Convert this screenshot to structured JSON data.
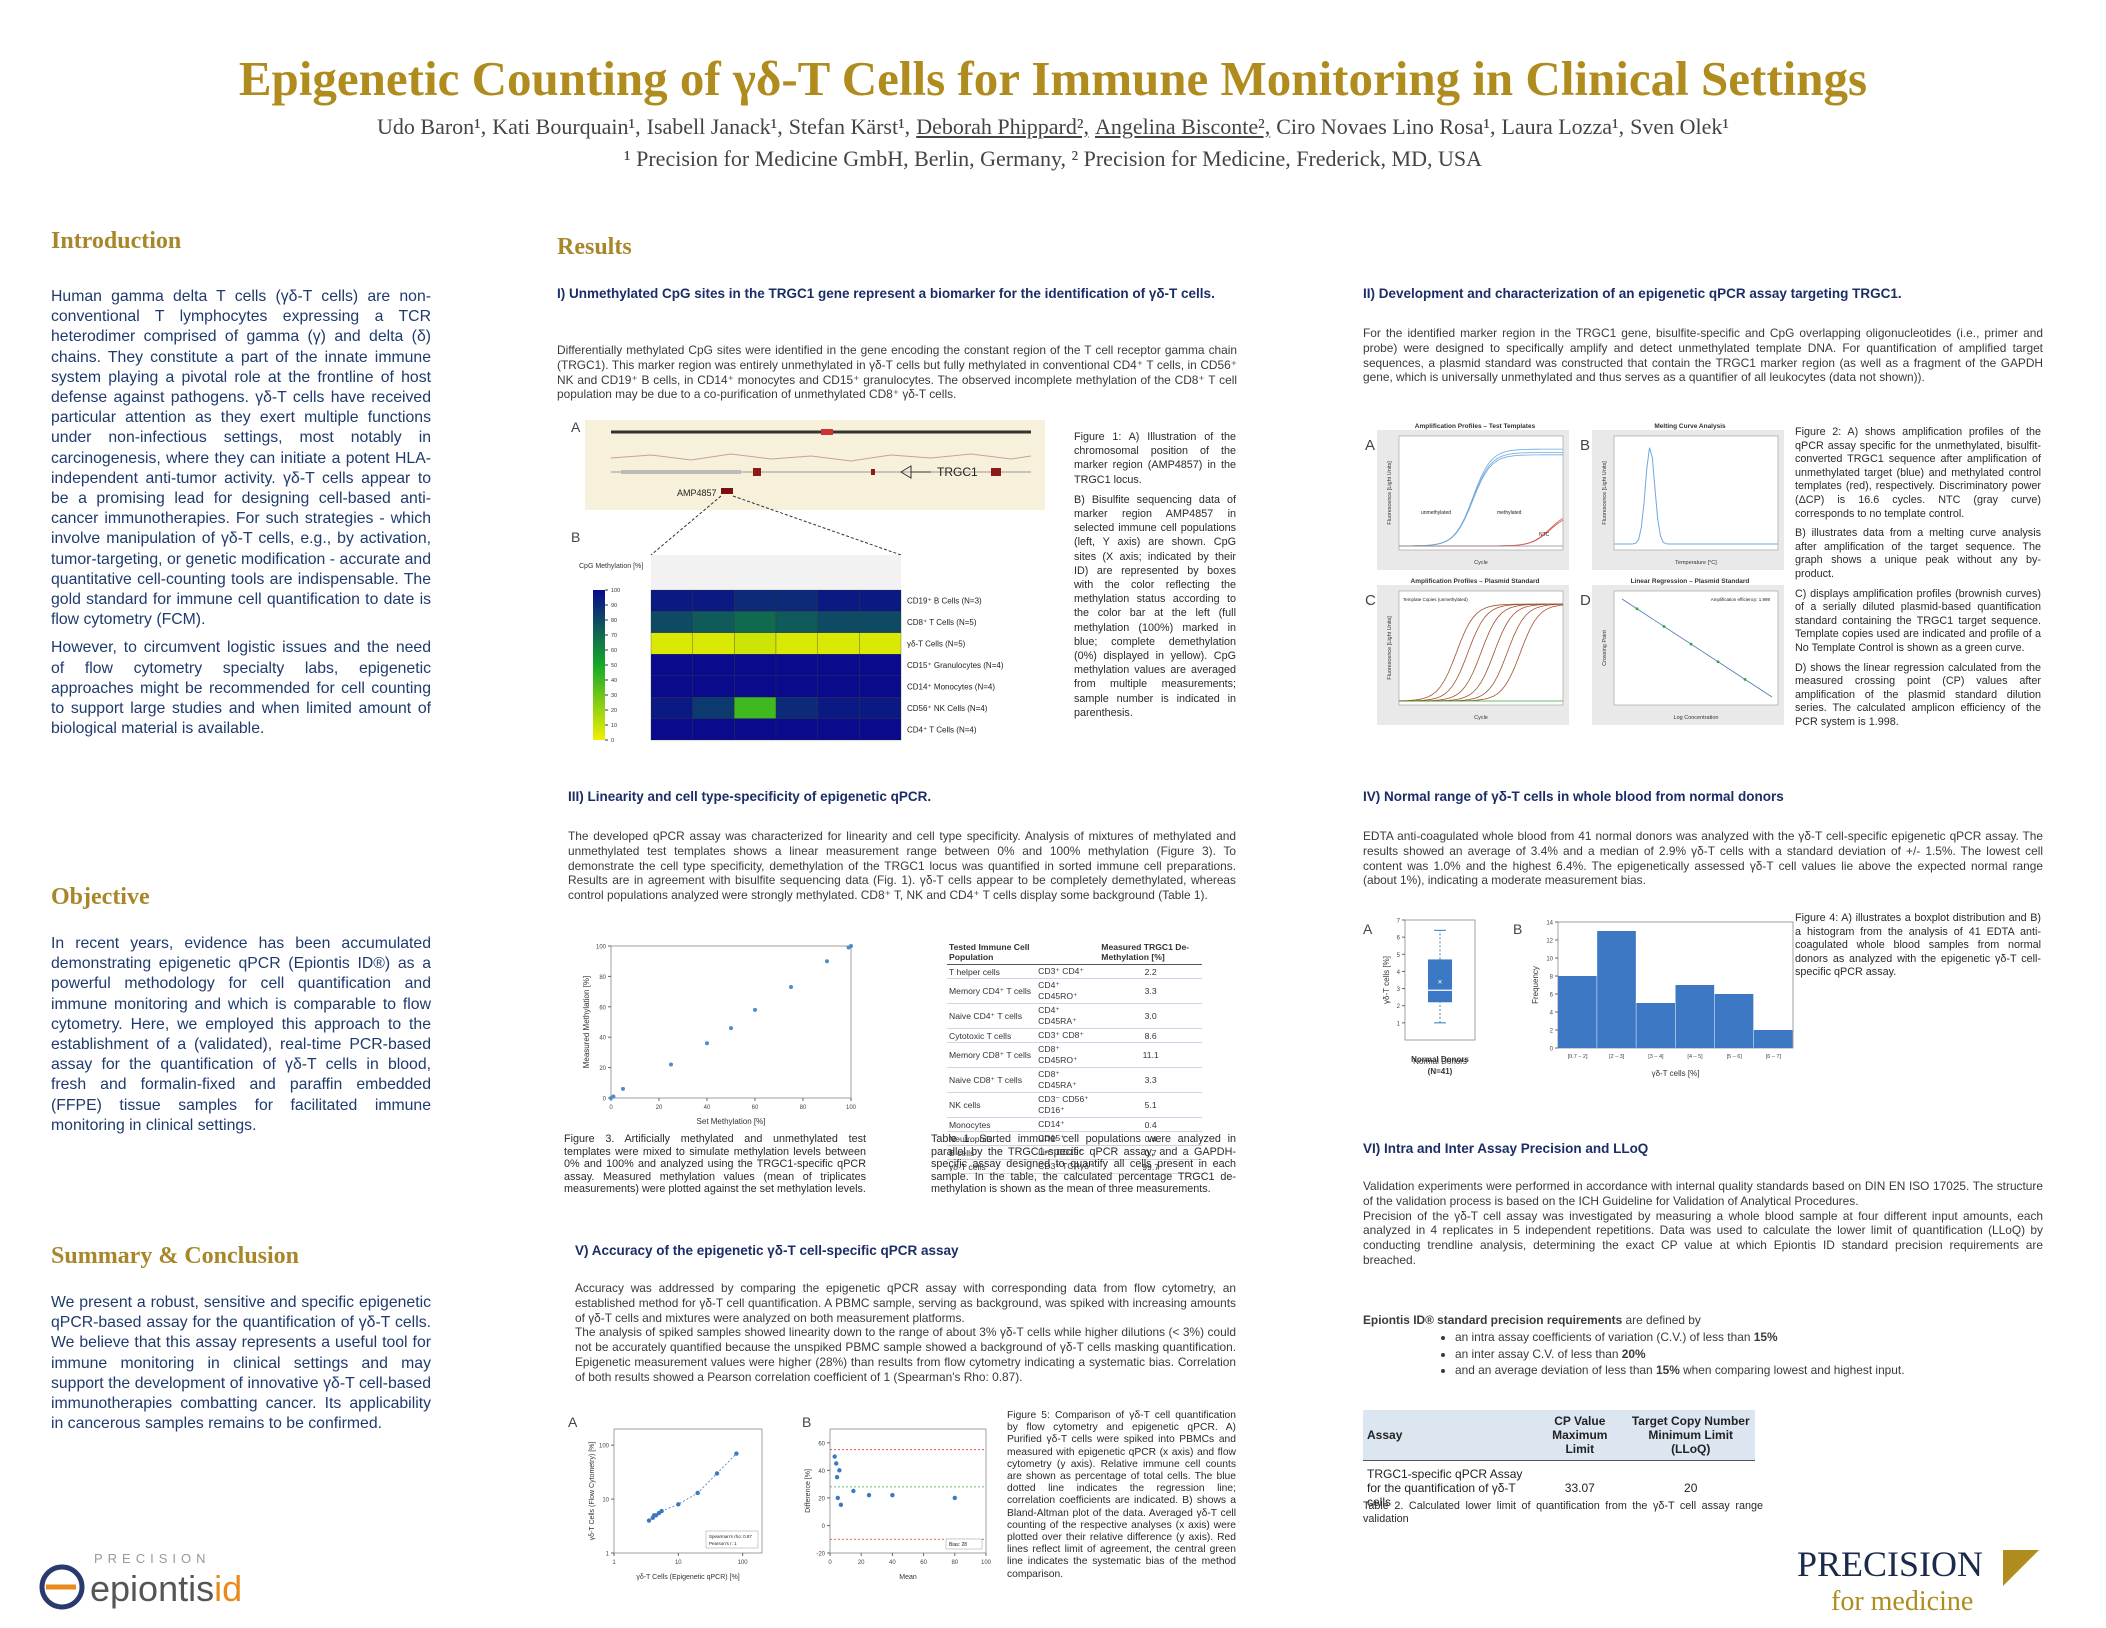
{
  "header": {
    "title": "Epigenetic Counting of γδ-T Cells for Immune Monitoring in Clinical Settings",
    "authors": [
      "Udo Baron¹,",
      "Kati Bourquain¹,",
      "Isabell Janack¹,",
      "Stefan Kärst¹,",
      "Deborah Phippard²,",
      "Angelina Bisconte²,",
      "Ciro Novaes Lino Rosa¹,",
      "Laura Lozza¹,",
      "Sven Olek¹"
    ],
    "affiliations": "¹ Precision for Medicine GmbH, Berlin, Germany, ² Precision for Medicine, Frederick, MD, USA"
  },
  "introduction": {
    "heading": "Introduction",
    "paragraphs": [
      "Human gamma delta T cells (γδ-T cells) are non-conventional T lymphocytes expressing a TCR heterodimer comprised of gamma (γ) and delta (δ) chains. They constitute a part of the innate immune system playing a pivotal role at the frontline of host defense against pathogens. γδ-T cells have received particular attention as they exert multiple functions under non-infectious settings, most notably in carcinogenesis, where they can initiate a potent HLA-independent anti-tumor activity. γδ-T cells appear to be a promising lead for designing cell-based anti-cancer immunotherapies. For such strategies - which involve manipulation of γδ-T cells, e.g., by activation, tumor-targeting, or genetic modification - accurate and quantitative cell-counting tools are indispensable. The gold standard for immune cell quantification to date is flow cytometry (FCM).",
      "However, to circumvent logistic issues and the need of flow cytometry specialty labs, epigenetic approaches might be recommended for cell counting to support large studies and when limited amount of biological material is available."
    ]
  },
  "objective": {
    "heading": "Objective",
    "text": "In recent years, evidence has been accumulated demonstrating epigenetic qPCR (Epiontis ID®) as a powerful methodology for cell quantification and immune monitoring and which is comparable to flow cytometry. Here, we employed this approach to the establishment of a (validated), real-time PCR-based assay for the quantification of γδ-T cells in blood, fresh and formalin-fixed and paraffin embedded (FFPE) tissue samples for facilitated immune monitoring in clinical settings."
  },
  "summary": {
    "heading": "Summary & Conclusion",
    "text": "We present a robust, sensitive and specific epigenetic qPCR-based assay for the quantification of γδ-T cells. We believe that this assay represents a useful tool for immune monitoring in clinical settings and may support the development of innovative γδ-T cell-based immunotherapies combatting cancer. Its applicability in cancerous samples remains to be confirmed."
  },
  "results": {
    "heading": "Results"
  },
  "section1": {
    "title": "I) Unmethylated CpG sites in the TRGC1 gene represent a biomarker for the identification of γδ-T cells.",
    "text": "Differentially methylated CpG sites were identified in the gene encoding the constant region of the T cell receptor gamma chain (TRGC1). This marker region was entirely unmethylated in γδ-T cells but fully methylated in conventional CD4⁺ T cells, in CD56⁺ NK and CD19⁺ B cells, in CD14⁺ monocytes and CD15⁺ granulocytes. The observed incomplete methylation of the CD8⁺ T cell population may be due to a co-purification of unmethylated CD8⁺ γδ-T cells.",
    "caption": [
      "Figure 1: A) Illustration of the chromosomal position of the marker region (AMP4857) in the TRGC1 locus.",
      "B) Bisulfite sequencing data of marker region AMP4857 in selected immune cell populations (left, Y axis) are shown. CpG sites (X axis; indicated by their ID) are represented by boxes with the color reflecting the methylation status according to the color bar at the left (full methylation (100%) marked in blue; complete demethylation (0%) displayed in yellow). CpG methylation values are averaged from multiple measurements; sample number is indicated in parenthesis."
    ]
  },
  "section2": {
    "title": "II) Development and characterization of an epigenetic qPCR assay targeting TRGC1.",
    "text": "For the identified marker region in the TRGC1 gene, bisulfite-specific and CpG overlapping oligonucleotides (i.e., primer and probe) were designed to specifically amplify and detect unmethylated template DNA. For quantification of amplified target sequences, a plasmid standard was constructed that contain the TRGC1 marker region (as well as a fragment of the GAPDH gene, which is universally unmethylated and thus serves as a quantifier of all leukocytes (data not shown)).",
    "caption": [
      "Figure 2: A) shows amplification profiles of the qPCR assay specific for the unmethylated, bisulfit-converted TRGC1 sequence after amplification of unmethylated target (blue) and methylated control templates (red), respectively. Discriminatory power (ΔCP) is 16.6 cycles. NTC (gray curve) corresponds to no template control.",
      "B) illustrates data from a melting curve analysis after amplification of the target sequence. The graph shows a unique peak without any by-product.",
      "C) displays amplification profiles (brownish curves) of a serially diluted plasmid-based quantification standard containing the TRGC1 target sequence. Template copies used are indicated and profile of a No Template Control is shown as a green curve.",
      "D) shows the linear regression calculated from the measured crossing point (CP) values after amplification of the plasmid standard dilution series. The calculated amplicon efficiency of the PCR system is 1.998."
    ]
  },
  "section3": {
    "title": "III) Linearity and cell type-specificity of epigenetic qPCR.",
    "text": "The developed qPCR assay was characterized for linearity and cell type specificity. Analysis of mixtures of methylated and unmethylated test templates shows a linear measurement range between 0% and 100% methylation (Figure 3). To demonstrate the cell type specificity, demethylation of the TRGC1 locus was quantified in sorted immune cell preparations. Results are in agreement with bisulfite sequencing data (Fig. 1). γδ-T cells appear to be completely demethylated, whereas control populations analyzed were strongly methylated. CD8⁺ T, NK and CD4⁺ T cells display some background (Table 1).",
    "figure_caption": "Figure 3. Artificially methylated and unmethylated test templates were mixed to simulate methylation levels between 0% and 100% and analyzed using the TRGC1-specific qPCR assay. Measured methylation values (mean of triplicates measurements) were plotted against the set methylation levels.",
    "table_caption": "Table 1. Sorted immune cell populations were analyzed in parallel by the TRGC1-specific qPCR assay, and a GAPDH-specific assay designed to quantify all cells present in each sample. In the table, the calculated percentage TRGC1 de-methylation is shown as the mean of three measurements."
  },
  "section4": {
    "title": "IV) Normal range of γδ-T cells in whole blood from normal donors",
    "text": "EDTA anti-coagulated whole blood from 41 normal donors was analyzed with the γδ-T cell-specific epigenetic qPCR assay. The results showed an average of 3.4% and a median of 2.9% γδ-T cells with a standard deviation of +/- 1.5%. The lowest cell content was 1.0% and the highest 6.4%. The epigenetically assessed γδ-T cell values lie above the expected normal range (about 1%), indicating a moderate measurement bias.",
    "caption": "Figure 4: A) illustrates a boxplot distribution and B) a histogram from the analysis of 41 EDTA anti-coagulated whole blood samples from normal donors as analyzed with the epigenetic γδ-T cell-specific qPCR assay."
  },
  "section5": {
    "title": "V) Accuracy of the epigenetic γδ-T cell-specific qPCR assay",
    "paragraphs": [
      "Accuracy was addressed by comparing the epigenetic qPCR assay with corresponding data from flow cytometry, an established method for γδ-T cell quantification. A PBMC sample, serving as background, was spiked with increasing amounts of γδ-T cells and mixtures were analyzed on both measurement platforms.",
      "The analysis of spiked samples showed linearity down to the range of about 3% γδ-T cells while higher dilutions (< 3%) could not be accurately quantified because the unspiked PBMC sample showed a background of γδ-T cells masking quantification. Epigenetic measurement values were higher (28%) than results from flow cytometry indicating a systematic bias. Correlation of both results showed a Pearson correlation coefficient of 1 (Spearman's Rho: 0.87)."
    ],
    "caption": "Figure 5: Comparison of γδ-T cell quantification by flow cytometry and epigenetic qPCR. A) Purified γδ-T cells were spiked into PBMCs and measured with epigenetic qPCR (x axis) and flow cytometry (y axis). Relative immune cell counts are shown as percentage of total cells. The blue dotted line indicates the regression line; correlation coefficients are indicated. B) shows a Bland-Altman plot of the data. Averaged γδ-T cell counting of the respective analyses (x axis) were plotted over their relative difference (y axis). Red lines reflect limit of agreement, the central green line indicates the systematic bias of the method comparison."
  },
  "section6": {
    "title": "VI) Intra and Inter Assay Precision and LLoQ",
    "paragraphs": [
      "Validation experiments were performed in accordance with internal quality standards based on DIN EN ISO 17025. The structure of the validation process is based on the ICH Guideline for Validation of Analytical Procedures.",
      "Precision of the γδ-T cell assay was investigated by measuring a whole blood sample at four different input amounts, each analyzed in 4 replicates in 5 independent repetitions. Data was used to calculate the lower limit of quantification (LLoQ) by conducting trendline analysis, determining the exact CP value at which Epiontis ID standard precision requirements are breached."
    ],
    "requirements_lead": "Epiontis ID® standard precision requirements",
    "requirements_rest": " are defined by",
    "bullets": [
      [
        "an intra assay coefficients of variation (C.V.) of less than ",
        "15%"
      ],
      [
        "an inter assay C.V. of less than ",
        "20%"
      ],
      [
        "and an average deviation of less than ",
        "15%",
        " when comparing lowest and highest input."
      ]
    ],
    "table_caption": "Table 2. Calculated lower limit of quantification from the γδ-T cell assay range validation"
  },
  "figure1": {
    "panel_a": "A",
    "panel_b": "B",
    "gene_label": "TRGC1",
    "region_label": "AMP4857",
    "colorbar_label": "CpG Methylation [%]",
    "colorbar_lim": [
      0,
      100
    ],
    "colorbar_ticks": [
      100,
      90,
      80,
      70,
      60,
      50,
      40,
      30,
      20,
      10,
      0
    ],
    "rows": [
      "CD19⁺ B Cells (N=3)",
      "CD8⁺ T Cells (N=5)",
      "γδ-T Cells (N=5)",
      "CD15⁺ Granulocytes (N=4)",
      "CD14⁺ Monocytes (N=4)",
      "CD56⁺ NK Cells (N=4)",
      "CD4⁺ T Cells (N=4)"
    ],
    "values": [
      [
        95,
        95,
        90,
        90,
        95,
        95
      ],
      [
        80,
        75,
        70,
        75,
        80,
        80
      ],
      [
        5,
        5,
        8,
        5,
        5,
        5
      ],
      [
        100,
        100,
        100,
        100,
        100,
        100
      ],
      [
        100,
        100,
        100,
        100,
        100,
        100
      ],
      [
        95,
        85,
        40,
        90,
        95,
        95
      ],
      [
        100,
        100,
        100,
        100,
        100,
        100
      ]
    ]
  },
  "figure2": {
    "panels": [
      {
        "letter": "A",
        "title": "Amplification Profiles – Test Templates",
        "x_label": "Cycle",
        "y_label": "Fluorescence [Light Units]",
        "annotations": [
          "unmethylated",
          "methylated",
          "NTC"
        ]
      },
      {
        "letter": "B",
        "title": "Melting Curve Analysis",
        "x_label": "Temperature [°C]",
        "y_label": "Fluorescence [Light Units]",
        "annotations": []
      },
      {
        "letter": "C",
        "title": "Amplification Profiles – Plasmid Standard",
        "x_label": "Cycle",
        "y_label": "Fluorescence [Light Units]",
        "annotations": [
          "Template Copies (unmethylated)"
        ]
      },
      {
        "letter": "D",
        "title": "Linear Regression – Plasmid Standard",
        "x_label": "Log Concentration",
        "y_label": "Crossing Point",
        "annotations": [
          "Amplification efficiency: 1.998"
        ]
      }
    ]
  },
  "figure3": {
    "type": "scatter",
    "x_label": "Set Methylation [%]",
    "y_label": "Measured Methylation [%]",
    "x": [
      0,
      1,
      5,
      25,
      40,
      50,
      60,
      75,
      90,
      99,
      100
    ],
    "y": [
      0,
      1,
      6,
      22,
      36,
      46,
      58,
      73,
      90,
      99,
      100
    ],
    "xlim": [
      0,
      100
    ],
    "ylim": [
      0,
      100
    ],
    "xticks": [
      0,
      20,
      40,
      60,
      80,
      100
    ],
    "yticks": [
      0,
      20,
      40,
      60,
      80,
      100
    ],
    "color": "#4a8fc9"
  },
  "table1": {
    "header": [
      "Tested Immune Cell Population",
      "",
      "Measured TRGC1 De-Methylation [%]"
    ],
    "rows": [
      [
        "T helper cells",
        "CD3⁺ CD4⁺",
        "2.2"
      ],
      [
        "Memory CD4⁺ T cells",
        "CD4⁺ CD45RO⁺",
        "3.3"
      ],
      [
        "Naive CD4⁺ T cells",
        "CD4⁺ CD45RA⁺",
        "3.0"
      ],
      [
        "Cytotoxic T cells",
        "CD3⁺ CD8⁺",
        "8.6"
      ],
      [
        "Memory CD8⁺ T cells",
        "CD8⁺ CD45RO⁺",
        "11.1"
      ],
      [
        "Naive CD8⁺ T cells",
        "CD8⁺ CD45RA⁺",
        "3.3"
      ],
      [
        "NK cells",
        "CD3⁻ CD56⁺ CD16⁺",
        "5.1"
      ],
      [
        "Monocytes",
        "CD14⁺",
        "0.4"
      ],
      [
        "Neutrophils",
        "CD15⁺",
        "0.4"
      ],
      [
        "B cells",
        "Lin⁻ CD19⁺",
        "0.7"
      ],
      [
        "γδ-T cells",
        "CD3⁺ TCRγδ⁺",
        "99.7"
      ]
    ]
  },
  "figure4": {
    "panel_a": "A",
    "panel_b": "B",
    "boxplot": {
      "type": "box",
      "y_label": "γδ-T cells [%]",
      "x_label": "Normal Donors",
      "n_label": "(N=41)",
      "min": 1.0,
      "q1": 2.2,
      "median": 2.9,
      "q3": 4.7,
      "max": 6.4,
      "mean": 3.4,
      "ylim": [
        0,
        7
      ],
      "yticks": [
        1,
        2,
        3,
        4,
        5,
        6,
        7
      ],
      "color": "#3c78c3"
    },
    "histogram": {
      "type": "bar",
      "x_label": "γδ-T cells [%]",
      "y_label": "Frequency",
      "categories": [
        "[0.7 – 2]",
        "[2 – 3]",
        "[3 – 4]",
        "[4 – 5]",
        "[5 – 6]",
        "[6 – 7]"
      ],
      "values": [
        8,
        13,
        5,
        7,
        6,
        2
      ],
      "ylim": [
        0,
        14
      ],
      "yticks": [
        0,
        2,
        4,
        6,
        8,
        10,
        12,
        14
      ],
      "color": "#3c78c3"
    }
  },
  "figure5": {
    "panel_a": "A",
    "panel_b": "B",
    "scatter": {
      "type": "scatter",
      "x_label": "γδ-T Cells (Epigenetic qPCR) [%]",
      "y_label": "γδ-T Cells (Flow Cytometry) [%]",
      "log_scale": true,
      "x": [
        3.5,
        4,
        4.2,
        4.5,
        5,
        5.5,
        10,
        20,
        40,
        80
      ],
      "y": [
        4,
        4.5,
        5,
        5,
        5.5,
        6,
        8,
        13,
        30,
        70
      ],
      "xlim": [
        1,
        200
      ],
      "ylim": [
        1,
        200
      ],
      "xticks": [
        1,
        10,
        100
      ],
      "yticks": [
        1,
        10,
        100
      ],
      "color": "#3c78c3",
      "annotations": [
        "Spearman's rho: 0.87",
        "Pearson's r: 1"
      ]
    },
    "bland_altman": {
      "type": "scatter",
      "x_label": "Mean",
      "y_label": "Difference [%]",
      "x": [
        3,
        4,
        4.5,
        5,
        6,
        7,
        15,
        25,
        40,
        80
      ],
      "y": [
        50,
        45,
        35,
        20,
        40,
        15,
        25,
        22,
        22,
        20
      ],
      "xlim": [
        0,
        100
      ],
      "ylim": [
        -20,
        70
      ],
      "xticks": [
        0,
        20,
        40,
        60,
        80,
        100
      ],
      "yticks": [
        -20,
        0,
        20,
        40,
        60
      ],
      "color": "#3c78c3",
      "upper_limit": 55,
      "lower_limit": -10,
      "bias": 28,
      "bias_label": "Bias: 28"
    }
  },
  "table2": {
    "header": [
      "Assay",
      "CP Value Maximum Limit",
      "Target Copy Number Minimum Limit (LLoQ)"
    ],
    "rows": [
      [
        "TRGC1-specific qPCR Assay for the quantification of γδ-T cells",
        "33.07",
        "20"
      ]
    ]
  },
  "logos": {
    "epiontis_top": "PRECISION",
    "epiontis_name": "epiontis",
    "epiontis_suffix": "id",
    "pfm_top": "PRECISION",
    "pfm_bottom": "for medicine"
  }
}
